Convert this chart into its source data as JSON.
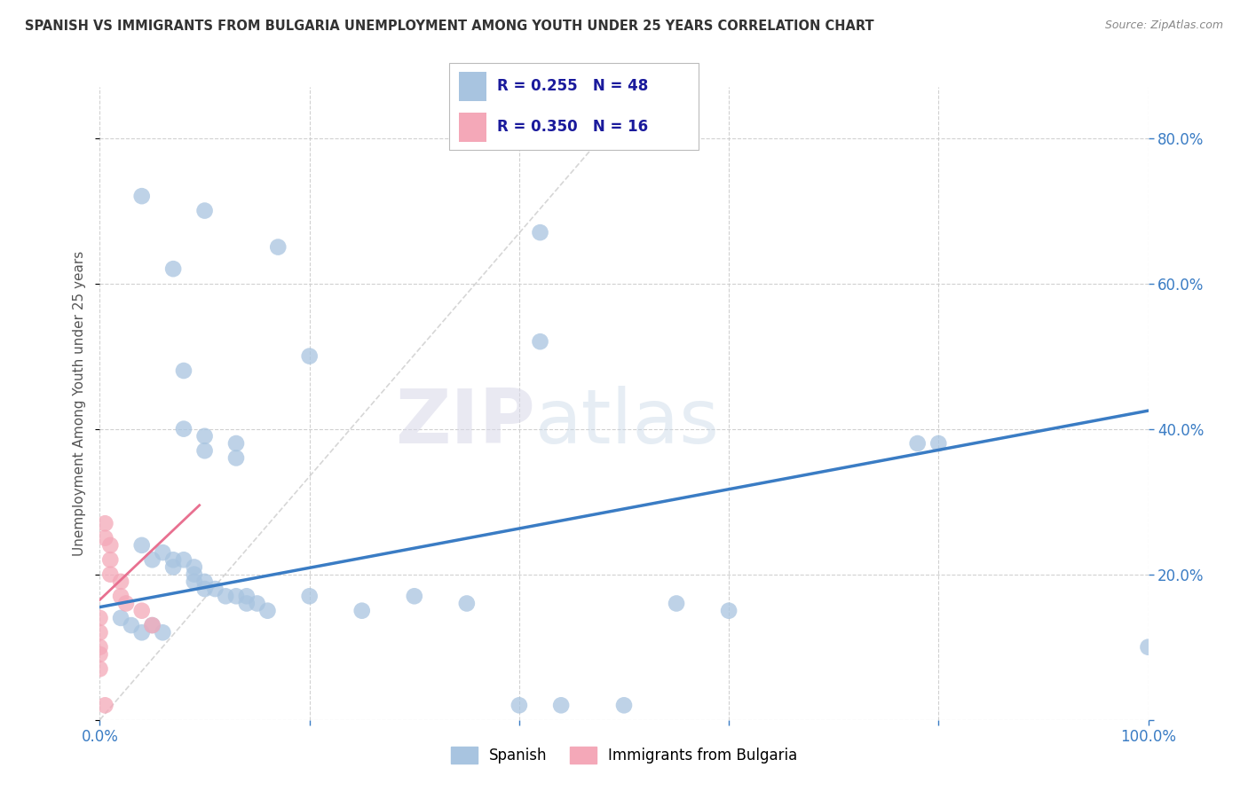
{
  "title": "SPANISH VS IMMIGRANTS FROM BULGARIA UNEMPLOYMENT AMONG YOUTH UNDER 25 YEARS CORRELATION CHART",
  "source": "Source: ZipAtlas.com",
  "ylabel": "Unemployment Among Youth under 25 years",
  "xlim": [
    0.0,
    1.0
  ],
  "ylim": [
    0.0,
    0.87
  ],
  "xtick_vals": [
    0.0,
    0.2,
    0.4,
    0.6,
    0.8,
    1.0
  ],
  "xticklabels": [
    "0.0%",
    "",
    "",
    "",
    "",
    "100.0%"
  ],
  "ytick_vals": [
    0.0,
    0.2,
    0.4,
    0.6,
    0.8
  ],
  "yticklabels_right": [
    "",
    "20.0%",
    "40.0%",
    "60.0%",
    "80.0%"
  ],
  "legend1_label": "Spanish",
  "legend2_label": "Immigrants from Bulgaria",
  "R1": 0.255,
  "N1": 48,
  "R2": 0.35,
  "N2": 16,
  "color_spanish": "#a8c4e0",
  "color_bulgaria": "#f4a8b8",
  "color_line_spanish": "#3a7cc4",
  "color_line_bulgaria": "#e87090",
  "color_tick": "#3a7cc4",
  "background_color": "#ffffff",
  "grid_color": "#cccccc",
  "watermark_zip": "ZIP",
  "watermark_atlas": "atlas",
  "spanish_x": [
    0.04,
    0.1,
    0.17,
    0.42,
    0.07,
    0.42,
    0.08,
    0.2,
    0.08,
    0.1,
    0.1,
    0.13,
    0.13,
    0.04,
    0.05,
    0.06,
    0.07,
    0.07,
    0.08,
    0.09,
    0.09,
    0.09,
    0.1,
    0.1,
    0.11,
    0.12,
    0.13,
    0.14,
    0.14,
    0.15,
    0.16,
    0.2,
    0.25,
    0.3,
    0.35,
    0.4,
    0.44,
    0.5,
    0.55,
    0.6,
    0.78,
    0.8,
    1.0,
    0.02,
    0.03,
    0.04,
    0.05,
    0.06
  ],
  "spanish_y": [
    0.72,
    0.7,
    0.65,
    0.67,
    0.62,
    0.52,
    0.48,
    0.5,
    0.4,
    0.39,
    0.37,
    0.38,
    0.36,
    0.24,
    0.22,
    0.23,
    0.22,
    0.21,
    0.22,
    0.21,
    0.2,
    0.19,
    0.19,
    0.18,
    0.18,
    0.17,
    0.17,
    0.17,
    0.16,
    0.16,
    0.15,
    0.17,
    0.15,
    0.17,
    0.16,
    0.02,
    0.02,
    0.02,
    0.16,
    0.15,
    0.38,
    0.38,
    0.1,
    0.14,
    0.13,
    0.12,
    0.13,
    0.12
  ],
  "bulgaria_x": [
    0.0,
    0.0,
    0.0,
    0.0,
    0.0,
    0.005,
    0.005,
    0.01,
    0.01,
    0.01,
    0.02,
    0.02,
    0.025,
    0.04,
    0.05,
    0.005
  ],
  "bulgaria_y": [
    0.14,
    0.12,
    0.1,
    0.09,
    0.07,
    0.27,
    0.25,
    0.24,
    0.22,
    0.2,
    0.19,
    0.17,
    0.16,
    0.15,
    0.13,
    0.02
  ],
  "blue_line_x": [
    0.0,
    1.0
  ],
  "blue_line_y": [
    0.155,
    0.425
  ],
  "pink_line_x": [
    0.0,
    0.095
  ],
  "pink_line_y": [
    0.165,
    0.295
  ],
  "dashed_line_x": [
    0.0,
    0.52
  ],
  "dashed_line_y": [
    0.0,
    0.87
  ]
}
